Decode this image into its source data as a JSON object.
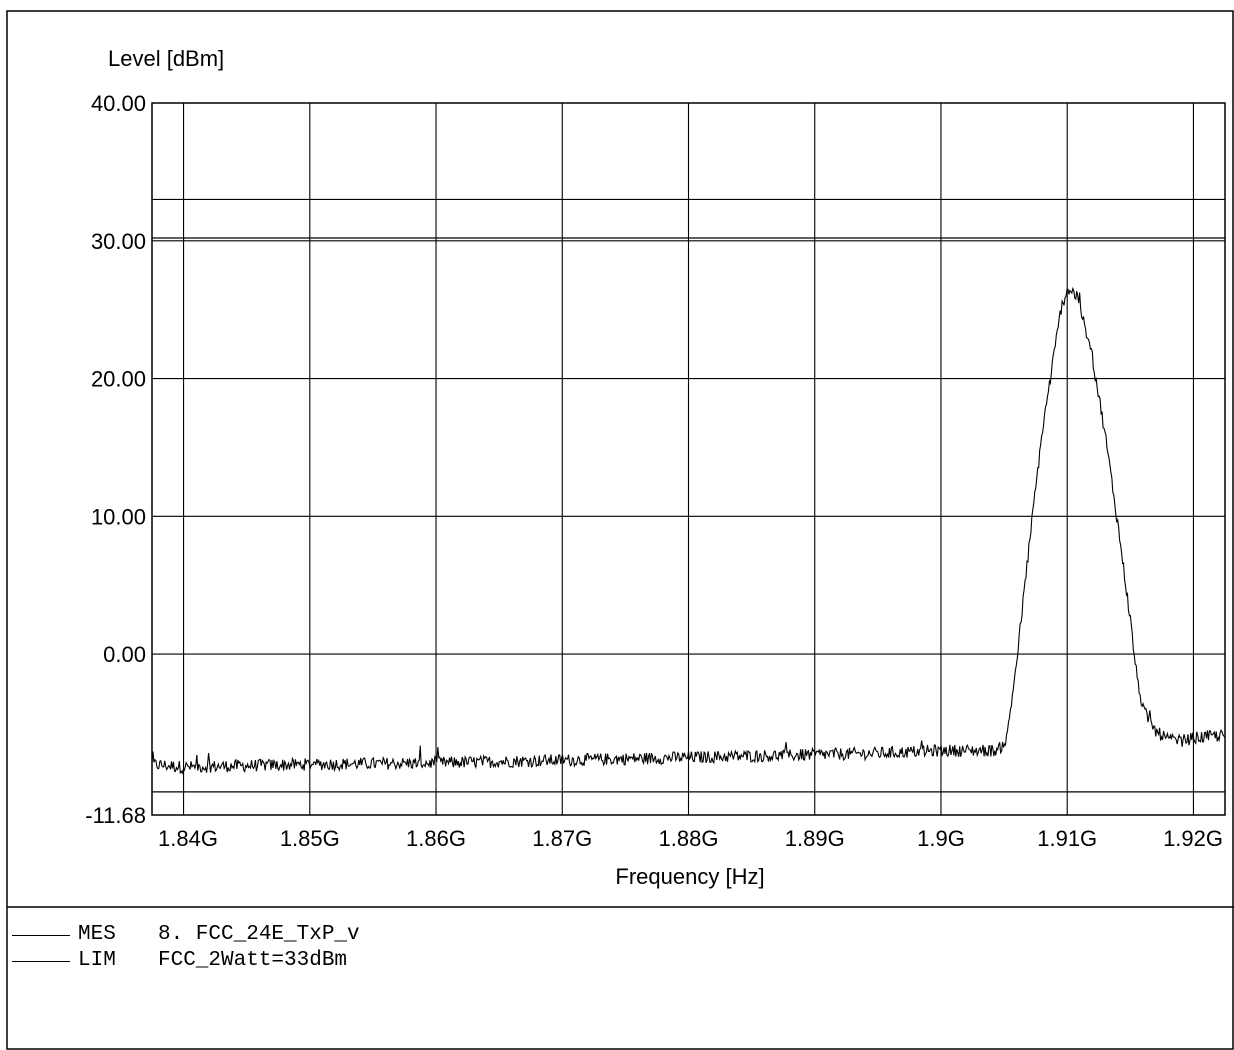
{
  "chart_data": {
    "type": "line",
    "title": "",
    "xlabel": "Frequency [Hz]",
    "ylabel": "Level [dBm]",
    "xlim": [
      1837500000.0,
      1922500000.0
    ],
    "ylim": [
      -11.68,
      40.0
    ],
    "x_ticks": [
      {
        "value": 1840000000.0,
        "label": "1.84G"
      },
      {
        "value": 1850000000.0,
        "label": "1.85G"
      },
      {
        "value": 1860000000.0,
        "label": "1.86G"
      },
      {
        "value": 1870000000.0,
        "label": "1.87G"
      },
      {
        "value": 1880000000.0,
        "label": "1.88G"
      },
      {
        "value": 1890000000.0,
        "label": "1.89G"
      },
      {
        "value": 1900000000.0,
        "label": "1.9G"
      },
      {
        "value": 1910000000.0,
        "label": "1.91G"
      },
      {
        "value": 1920000000.0,
        "label": "1.92G"
      }
    ],
    "y_ticks": [
      {
        "value": 40.0,
        "label": "40.00"
      },
      {
        "value": 30.0,
        "label": "30.00"
      },
      {
        "value": 20.0,
        "label": "20.00"
      },
      {
        "value": 10.0,
        "label": "10.00"
      },
      {
        "value": 0.0,
        "label": "0.00"
      },
      {
        "value": -11.68,
        "label": "-11.68"
      }
    ],
    "grid": true,
    "horizontal_lines": [
      33.0,
      30.2,
      -10.0
    ],
    "series": [
      {
        "name": "MES",
        "color": "#000000",
        "noise_floor_dbm": -8.0,
        "x": [
          1837500000.0,
          1840000000.0,
          1850000000.0,
          1860000000.0,
          1870000000.0,
          1880000000.0,
          1890000000.0,
          1895000000.0,
          1900000000.0,
          1904500000.0,
          1905200000.0,
          1906000000.0,
          1907000000.0,
          1908000000.0,
          1909000000.0,
          1909500000.0,
          1910000000.0,
          1910500000.0,
          1911000000.0,
          1912000000.0,
          1913000000.0,
          1914000000.0,
          1915000000.0,
          1915500000.0,
          1916000000.0,
          1917000000.0,
          1918000000.0,
          1919000000.0,
          1920000000.0,
          1921000000.0,
          1922500000.0
        ],
        "y": [
          -8.0,
          -8.2,
          -8.0,
          -7.9,
          -7.7,
          -7.5,
          -7.3,
          -7.2,
          -7.0,
          -7.0,
          -6.2,
          -0.5,
          8.0,
          16.0,
          22.0,
          25.0,
          26.5,
          26.3,
          25.2,
          21.5,
          16.0,
          9.5,
          2.5,
          -1.5,
          -4.0,
          -5.6,
          -6.2,
          -6.3,
          -6.1,
          -6.0,
          -5.9
        ]
      },
      {
        "name": "LIM",
        "color": "#000000",
        "x": [
          1837500000.0,
          1922500000.0
        ],
        "y": [
          33.0,
          33.0
        ]
      }
    ],
    "legend": {
      "placement": "bottom-left",
      "entries": [
        {
          "code": "MES",
          "text": "8. FCC_24E_TxP_v"
        },
        {
          "code": "LIM",
          "text": "FCC_2Watt=33dBm"
        }
      ]
    }
  }
}
